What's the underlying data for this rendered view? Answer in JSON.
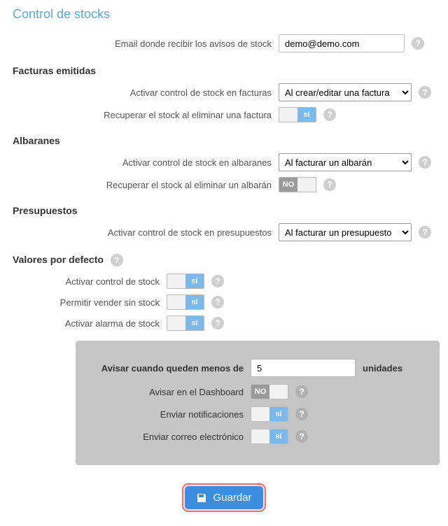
{
  "colors": {
    "title": "#5aa9e6",
    "toggle_on": "#7cb9ec",
    "toggle_off": "#9a9a9a",
    "help_bg": "#cfcfcf",
    "subbox_bg": "#c6c6c6",
    "save_bg": "#3b8ee0",
    "save_outline": "#ff6a6a"
  },
  "title": "Control de stocks",
  "email": {
    "label": "Email donde recibir los avisos de stock",
    "value": "demo@demo.com"
  },
  "facturas": {
    "heading": "Facturas emitidas",
    "activate_label": "Activar control de stock en facturas",
    "activate_value": "Al crear/editar una factura",
    "activate_options": [
      "Al crear/editar una factura"
    ],
    "recover_label": "Recuperar el stock al eliminar una factura",
    "recover_on": true
  },
  "albaranes": {
    "heading": "Albaranes",
    "activate_label": "Activar control de stock en albaranes",
    "activate_value": "Al facturar un albarán",
    "activate_options": [
      "Al facturar un albarán"
    ],
    "recover_label": "Recuperar el stock al eliminar un albarán",
    "recover_on": false
  },
  "presupuestos": {
    "heading": "Presupuestos",
    "activate_label": "Activar control de stock en presupuestos",
    "activate_value": "Al facturar un presupuesto",
    "activate_options": [
      "Al facturar un presupuesto"
    ]
  },
  "defaults": {
    "heading": "Valores por defecto",
    "activate_label": "Activar control de stock",
    "activate_on": true,
    "allow_label": "Permitir vender sin stock",
    "allow_on": true,
    "alarm_label": "Activar alarma de stock",
    "alarm_on": true
  },
  "alert_box": {
    "threshold_label": "Avisar cuando queden menos de",
    "threshold_value": "5",
    "threshold_units": "unidades",
    "dashboard_label": "Avisar en el Dashboard",
    "dashboard_on": false,
    "notif_label": "Enviar notificaciones",
    "notif_on": true,
    "email_label": "Enviar correo electrónico",
    "email_on": true
  },
  "toggle_text": {
    "on": "sí",
    "off": "NO"
  },
  "save_label": "Guardar"
}
